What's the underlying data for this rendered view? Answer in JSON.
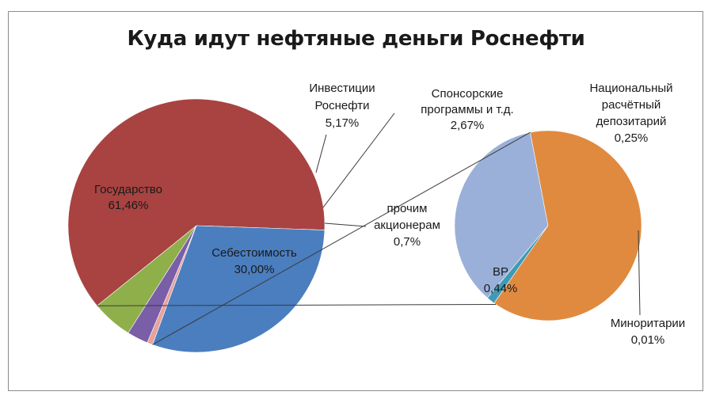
{
  "chart_data": [
    {
      "type": "pie",
      "title": "Куда идут нефтяные деньги Роснефти",
      "slices": [
        {
          "name": "Государство",
          "value": 61.46,
          "value_label": "61,46%",
          "color": "#a84341"
        },
        {
          "name": "Инвестиции Роснефти",
          "value": 5.17,
          "value_label": "5,17%",
          "color": "#8faf4b"
        },
        {
          "name": "Спонсорские программы и т.д.",
          "value": 2.67,
          "value_label": "2,67%",
          "color": "#7a5ea8"
        },
        {
          "name": "прочим акционерам",
          "value": 0.7,
          "value_label": "0,7%",
          "color": "#e8a29c"
        },
        {
          "name": "Себестоимость",
          "value": 30.0,
          "value_label": "30,00%",
          "color": "#4a7ebf"
        }
      ]
    },
    {
      "type": "pie",
      "title": "",
      "slices": [
        {
          "name": "Национальный расчётный депозитарий",
          "value": 0.25,
          "value_label": "0,25%",
          "color": "#9ab0d8"
        },
        {
          "name": "Миноритарии",
          "value": 0.01,
          "value_label": "0,01%",
          "color": "#3f9bb5"
        },
        {
          "name": "BP",
          "value": 0.44,
          "value_label": "0,44%",
          "color": "#e08a40"
        }
      ]
    }
  ],
  "labels": {
    "gosudarstvo": [
      "Государство",
      "61,46%"
    ],
    "investicii": [
      "Инвестиции",
      "Роснефти",
      "5,17%"
    ],
    "sponsor": [
      "Спонсорские",
      "программы и т.д.",
      "2,67%"
    ],
    "nrd": [
      "Национальный",
      "расчётный",
      "депозитарий",
      "0,25%"
    ],
    "prochim": [
      "прочим",
      "акционерам",
      "0,7%"
    ],
    "sebestoimost": [
      "Себестоимость",
      "30,00%"
    ],
    "bp": [
      "BP",
      "0,44%"
    ],
    "minoritarii": [
      "Миноритарии",
      "0,01%"
    ]
  }
}
